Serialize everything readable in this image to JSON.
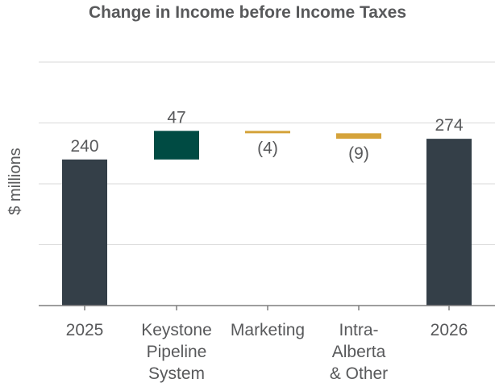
{
  "chart_data": {
    "type": "bar",
    "subtype": "waterfall",
    "title": "Change in Income before Income Taxes",
    "ylabel": "$ millions",
    "xlabel": "",
    "ylim": [
      0,
      400
    ],
    "grid": true,
    "categories": [
      [
        "2025"
      ],
      [
        "Keystone",
        "Pipeline",
        "System"
      ],
      [
        "Marketing"
      ],
      [
        "Intra-",
        "Alberta",
        "& Other"
      ],
      [
        "2026"
      ]
    ],
    "bars": [
      {
        "kind": "total",
        "start": 0,
        "value": 240,
        "label": "240"
      },
      {
        "kind": "increase",
        "start": 240,
        "value": 47,
        "label": "47"
      },
      {
        "kind": "decrease",
        "start": 287,
        "value": -4,
        "label": "(4)"
      },
      {
        "kind": "decrease",
        "start": 283,
        "value": -9,
        "label": "(9)"
      },
      {
        "kind": "total",
        "start": 0,
        "value": 274,
        "label": "274"
      }
    ],
    "colors": {
      "total": "#343f48",
      "increase": "#004b43",
      "decrease": "#d5a33b"
    }
  }
}
